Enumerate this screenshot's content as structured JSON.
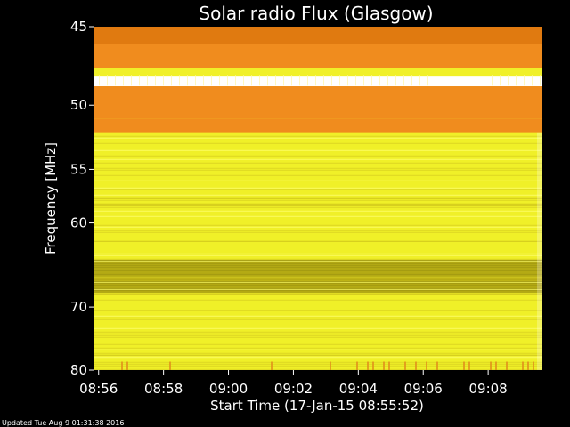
{
  "chart_data": {
    "type": "heatmap",
    "title": "Solar radio Flux (Glasgow)",
    "xlabel": "Start Time (17-Jan-15 08:55:52)",
    "ylabel": "Frequency [MHz]",
    "x_ticks": [
      "08:56",
      "08:58",
      "09:00",
      "09:02",
      "09:04",
      "09:06",
      "09:08"
    ],
    "x_tick_minutes": [
      0.13,
      2.13,
      4.13,
      6.13,
      8.13,
      10.13,
      12.13
    ],
    "xlim_minutes": [
      0,
      13.8
    ],
    "y_ticks": [
      45,
      50,
      55,
      60,
      70,
      80
    ],
    "ylim": [
      45,
      80
    ],
    "y_inverted": true,
    "frequency_axis_reciprocal": true,
    "colormap": "yellow-orange",
    "colors": {
      "orange": "#f08c1e",
      "dark_orange": "#e07a10",
      "yellow": "#f0f028",
      "bright_yellow": "#ffff55",
      "olive": "#b4aa14",
      "white": "#ffffff"
    },
    "bands": [
      {
        "from": 45,
        "to": 46,
        "level": "dark_orange"
      },
      {
        "from": 46,
        "to": 47.5,
        "level": "orange"
      },
      {
        "from": 48,
        "to": 48.7,
        "level": "white"
      },
      {
        "from": 48.7,
        "to": 51,
        "level": "orange"
      },
      {
        "from": 51,
        "to": 52,
        "level": "orange"
      },
      {
        "from": 52,
        "to": 64,
        "level": "yellow"
      },
      {
        "from": 64,
        "to": 68,
        "level": "olive"
      },
      {
        "from": 68,
        "to": 80,
        "level": "yellow"
      }
    ]
  },
  "footer": {
    "updated": "Updated Tue Aug  9 01:31:38 2016"
  }
}
